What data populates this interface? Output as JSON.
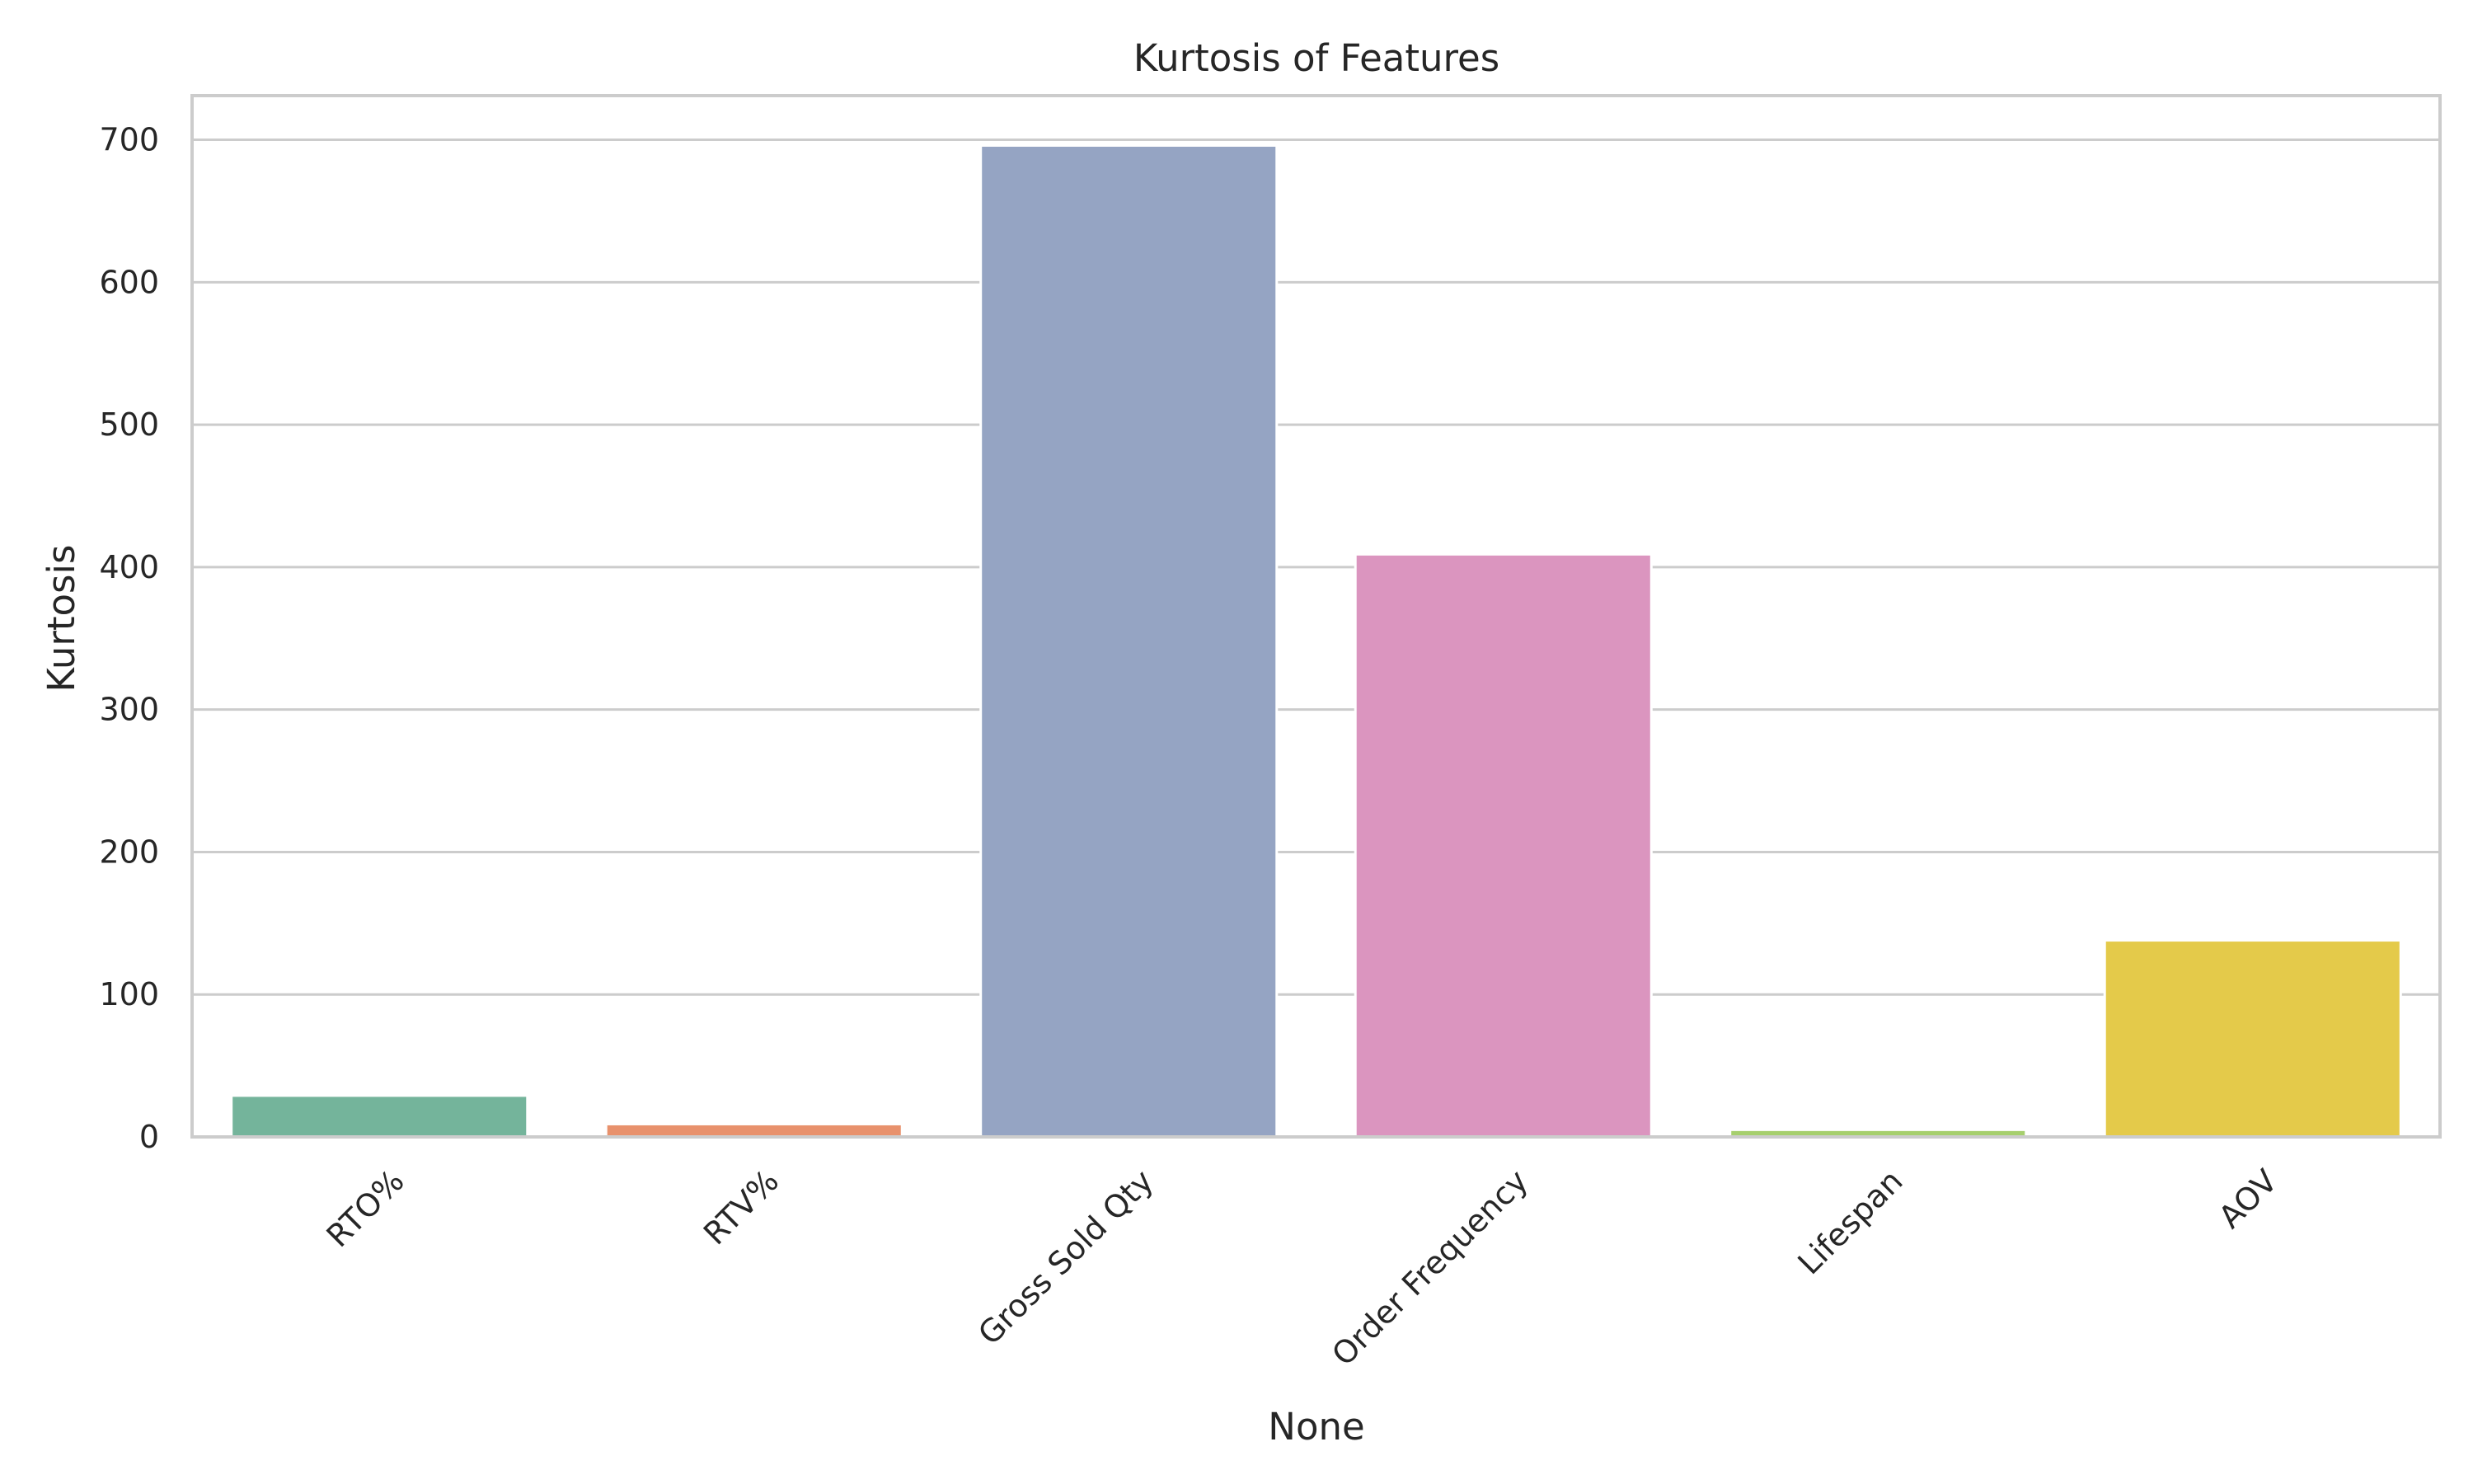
{
  "chart_data": {
    "type": "bar",
    "title": "Kurtosis of Features",
    "xlabel": "None",
    "ylabel": "Kurtosis",
    "categories": [
      "RTO%",
      "RTV%",
      "Gross Sold Qty",
      "Order Frequency",
      "Lifespan",
      "AOV"
    ],
    "values": [
      29,
      9,
      696,
      409,
      5,
      138
    ],
    "colors": [
      "#74b49b",
      "#e8916c",
      "#95a4c3",
      "#db95bf",
      "#a6cf6d",
      "#e4ca4a"
    ],
    "yticks": [
      0,
      100,
      200,
      300,
      400,
      500,
      600,
      700
    ],
    "ylim": [
      0,
      731
    ],
    "grid": true,
    "legend": false
  }
}
